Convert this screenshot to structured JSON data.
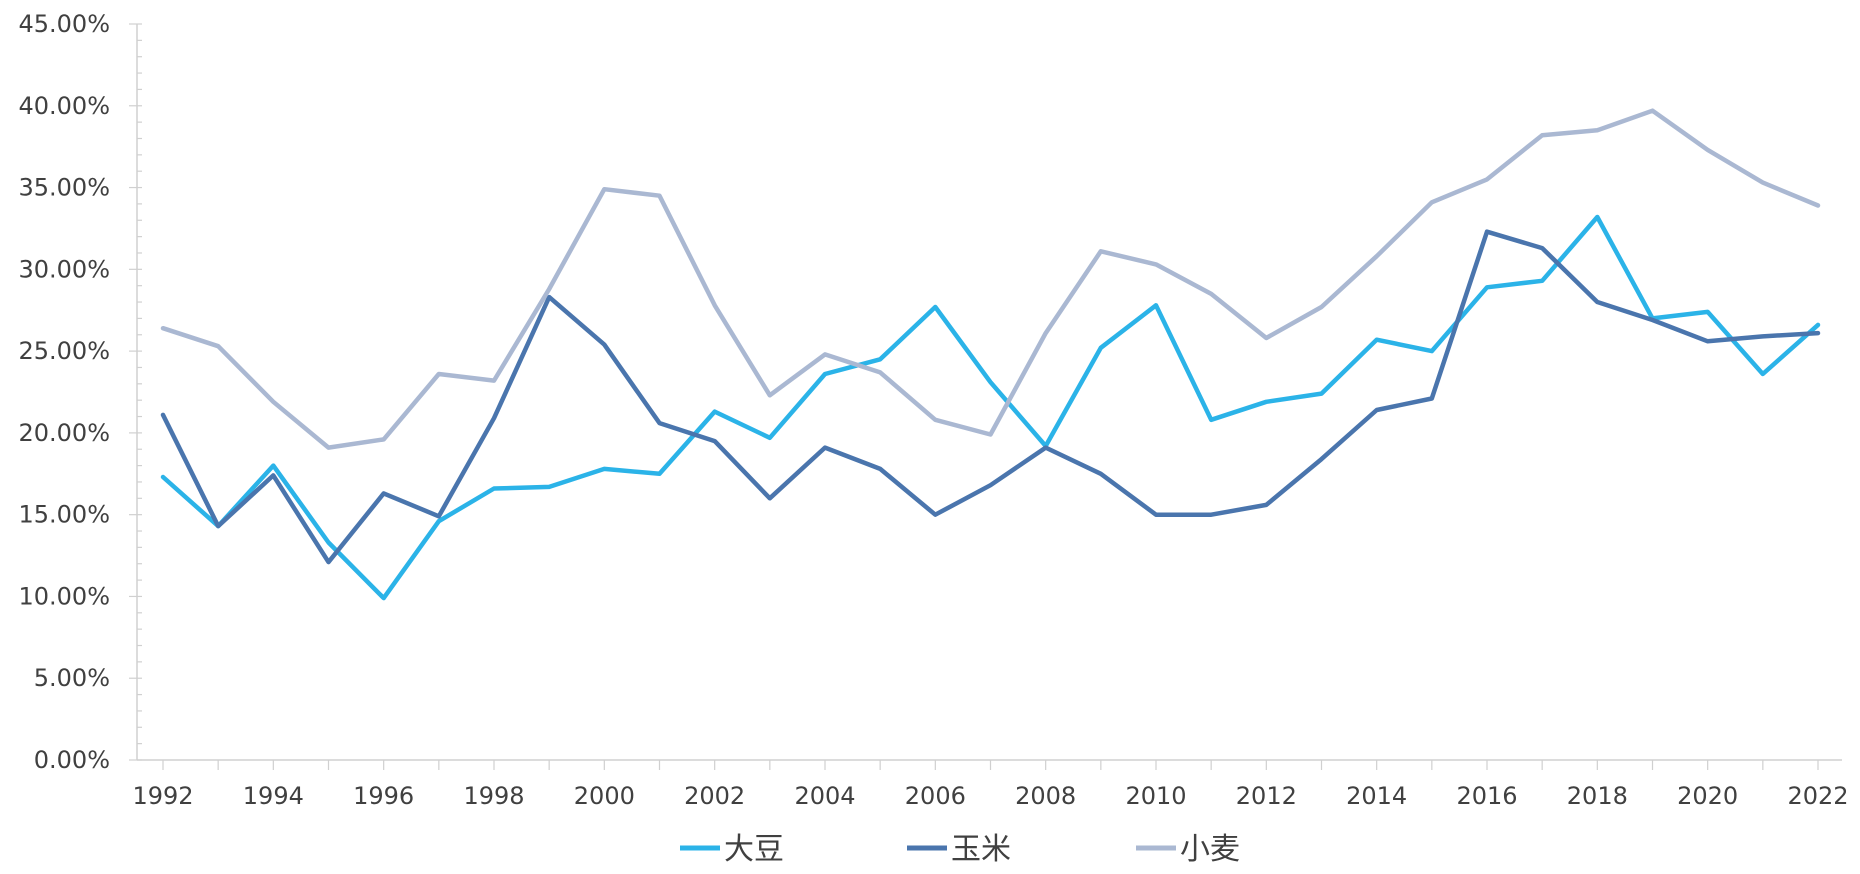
{
  "chart_data": {
    "type": "line",
    "title": "",
    "xlabel": "",
    "ylabel": "",
    "x": [
      1992,
      1993,
      1994,
      1995,
      1996,
      1997,
      1998,
      1999,
      2000,
      2001,
      2002,
      2003,
      2004,
      2005,
      2006,
      2007,
      2008,
      2009,
      2010,
      2011,
      2012,
      2013,
      2014,
      2015,
      2016,
      2017,
      2018,
      2019,
      2020,
      2021,
      2022
    ],
    "x_tick_labels": [
      "1992",
      "1994",
      "1996",
      "1998",
      "2000",
      "2002",
      "2004",
      "2006",
      "2008",
      "2010",
      "2012",
      "2014",
      "2016",
      "2018",
      "2020",
      "2022"
    ],
    "y_tick_labels": [
      "0.00%",
      "5.00%",
      "10.00%",
      "15.00%",
      "20.00%",
      "25.00%",
      "30.00%",
      "35.00%",
      "40.00%",
      "45.00%"
    ],
    "ylim": [
      0,
      45
    ],
    "y_unit": "%",
    "grid": false,
    "legend_position": "bottom",
    "series": [
      {
        "name": "大豆",
        "color": "#2bb3e8",
        "values": [
          17.3,
          14.3,
          18.0,
          13.3,
          9.9,
          14.6,
          16.6,
          16.7,
          17.8,
          17.5,
          21.3,
          19.7,
          23.6,
          24.5,
          27.7,
          23.1,
          19.2,
          25.2,
          27.8,
          20.8,
          21.9,
          22.4,
          25.7,
          25.0,
          28.9,
          29.3,
          33.2,
          27.0,
          27.4,
          23.6,
          26.6
        ]
      },
      {
        "name": "玉米",
        "color": "#4a75ad",
        "values": [
          21.1,
          14.3,
          17.4,
          12.1,
          16.3,
          14.9,
          20.9,
          28.3,
          25.4,
          20.6,
          19.5,
          16.0,
          19.1,
          17.8,
          15.0,
          16.8,
          19.1,
          17.5,
          15.0,
          15.0,
          15.6,
          18.4,
          21.4,
          22.1,
          32.3,
          31.3,
          28.0,
          26.9,
          25.6,
          25.9,
          26.1
        ]
      },
      {
        "name": "小麦",
        "color": "#aab8d2",
        "values": [
          26.4,
          25.3,
          21.9,
          19.1,
          19.6,
          23.6,
          23.2,
          28.8,
          34.9,
          34.5,
          27.8,
          22.3,
          24.8,
          23.7,
          20.8,
          19.9,
          26.1,
          31.1,
          30.3,
          28.5,
          25.8,
          27.7,
          30.8,
          34.1,
          35.5,
          38.2,
          38.5,
          39.7,
          37.3,
          35.3,
          33.9
        ]
      }
    ]
  }
}
